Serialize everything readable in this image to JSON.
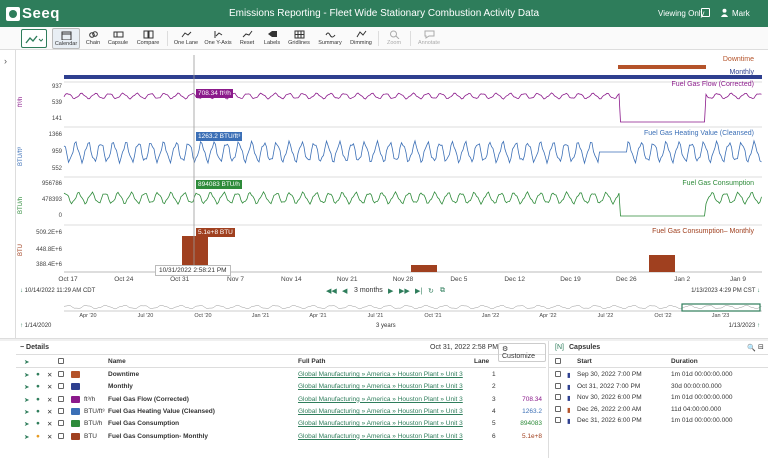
{
  "header": {
    "logo": "Seeq",
    "title": "Emissions Reporting - Fleet Wide Stationary Combustion Activity Data",
    "view_mode": "Viewing Only",
    "user": "Mark"
  },
  "toolbar": {
    "calendar": "Calendar",
    "chain": "Chain",
    "capsule": "Capsule",
    "compare": "Compare",
    "one_lane": "One Lane",
    "one_y_axis": "One Y-Axis",
    "reset": "Reset",
    "labels": "Labels",
    "gridlines": "Gridlines",
    "summary": "Summary",
    "dimming": "Dimming",
    "zoom": "Zoom",
    "annotate": "Annotate"
  },
  "trend": {
    "lanes": {
      "downtime": "Downtime",
      "monthly": "Monthly",
      "flow": "Fuel Gas Flow (Corrected)",
      "heating": "Fuel Gas Heating Value (Cleansed)",
      "consumption": "Fuel Gas Consumption",
      "consumption_monthly": "Fuel Gas Consumption– Monthly"
    },
    "axes": {
      "flow_unit": "ft³/h",
      "flow_ticks": [
        "937",
        "539",
        "141"
      ],
      "heat_unit": "BTU/ft³",
      "heat_ticks": [
        "1366",
        "959",
        "552"
      ],
      "cons_unit": "BTU/h",
      "cons_ticks": [
        "956786",
        "478393",
        "0"
      ],
      "month_unit": "BTU",
      "month_ticks": [
        "509.2E+6",
        "448.8E+6",
        "388.4E+6"
      ]
    },
    "cursor": {
      "flow": "708.34 ft³/h",
      "heat": "1263.2 BTU/ft³",
      "cons": "894083 BTU/h",
      "month": "5.1e+8 BTU",
      "date": "10/31/2022 2:58:21 PM"
    },
    "xticks": [
      "Oct 17",
      "Oct 24",
      "Oct 31",
      "Nov 7",
      "Nov 14",
      "Nov 21",
      "Nov 28",
      "Dec 5",
      "Dec 12",
      "Dec 19",
      "Dec 26",
      "Jan 2",
      "Jan 9"
    ],
    "range_start": "10/14/2022 11:29 AM  CDT",
    "range_end": "1/13/2023 4:29 PM  CST",
    "range_label": "3 months",
    "overview_ticks": [
      "Apr '20",
      "Jul '20",
      "Oct '20",
      "Jan '21",
      "Apr '21",
      "Jul '21",
      "Oct '21",
      "Jan '22",
      "Apr '22",
      "Jul '22",
      "Oct '22",
      "Jan '23"
    ],
    "overview_start": "1/14/2020",
    "overview_end": "1/13/2023",
    "overview_label": "3 years",
    "colors": {
      "flow": "#8b1a8b",
      "heat": "#3b6fb6",
      "cons": "#2e8b3a",
      "month": "#a0401f",
      "capsule": "#2e3f8f"
    }
  },
  "details": {
    "title": "Details",
    "time": "Oct 31, 2022 2:58 PM",
    "customize": "Customize",
    "columns": {
      "name": "Name",
      "path": "Full Path",
      "lane": "Lane"
    },
    "rows": [
      {
        "unit": "",
        "name": "Downtime",
        "path": "Global Manufacturing » America » Houston Plant » Unit 3",
        "lane": "1",
        "value": ""
      },
      {
        "unit": "",
        "name": "Monthly",
        "path": "Global Manufacturing » America » Houston Plant » Unit 3",
        "lane": "2",
        "value": ""
      },
      {
        "unit": "ft³/h",
        "name": "Fuel Gas Flow (Corrected)",
        "path": "Global Manufacturing » America » Houston Plant » Unit 3",
        "lane": "3",
        "value": "708.34"
      },
      {
        "unit": "BTU/ft³",
        "name": "Fuel Gas Heating Value (Cleansed)",
        "path": "Global Manufacturing » America » Houston Plant » Unit 3",
        "lane": "4",
        "value": "1263.2"
      },
      {
        "unit": "BTU/h",
        "name": "Fuel Gas Consumption",
        "path": "Global Manufacturing » America » Houston Plant » Unit 3",
        "lane": "5",
        "value": "894083"
      },
      {
        "unit": "BTU",
        "name": "Fuel Gas Consumption- Monthly",
        "path": "Global Manufacturing » America » Houston Plant » Unit 3",
        "lane": "6",
        "value": "5.1e+8"
      }
    ]
  },
  "capsules": {
    "title": "Capsules",
    "columns": {
      "start": "Start",
      "duration": "Duration"
    },
    "rows": [
      {
        "start": "Sep 30, 2022 7:00 PM",
        "duration": "1m 01d 00:00:00.000"
      },
      {
        "start": "Oct 31, 2022 7:00 PM",
        "duration": "30d 00:00:00.000"
      },
      {
        "start": "Nov 30, 2022 6:00 PM",
        "duration": "1m 01d 00:00:00.000"
      },
      {
        "start": "Dec 26, 2022 2:00 AM",
        "duration": "11d 04:00:00.000"
      },
      {
        "start": "Dec 31, 2022 6:00 PM",
        "duration": "1m 01d 00:00:00.000"
      }
    ]
  }
}
